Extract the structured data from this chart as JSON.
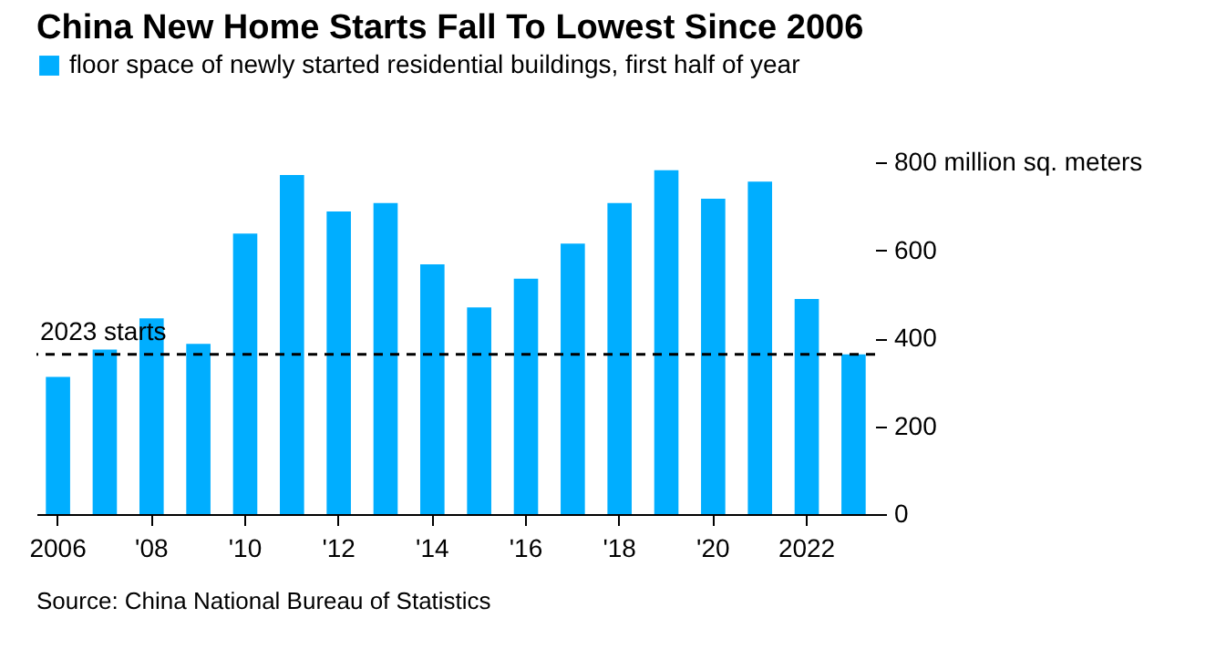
{
  "chart_data": {
    "type": "bar",
    "title": "China New Home Starts Fall To Lowest Since 2006",
    "categories": [
      "2006",
      null,
      "'08",
      null,
      "'10",
      null,
      "'12",
      null,
      "'14",
      null,
      "'16",
      null,
      "'18",
      null,
      "'20",
      null,
      "2022",
      null
    ],
    "series": [
      {
        "name": "floor space of newly started residential buildings, first half of year",
        "color": "#00aeff",
        "values": [
          312,
          374,
          445,
          387,
          638,
          771,
          688,
          707,
          568,
          470,
          535,
          615,
          707,
          782,
          717,
          756,
          489,
          363
        ]
      }
    ],
    "ylim": [
      0,
      800
    ],
    "yticks": [
      0,
      200,
      400,
      600,
      {
        "value": 800,
        "label": "800 million sq. meters"
      }
    ],
    "ref_lines": [
      {
        "axis": "y",
        "value": 363,
        "label": "2023 starts",
        "color": "#000000",
        "line_style": "dashed"
      }
    ],
    "legend": "top left",
    "grid": false,
    "annotations": [
      "Source: China National Bureau of Statistics"
    ]
  }
}
